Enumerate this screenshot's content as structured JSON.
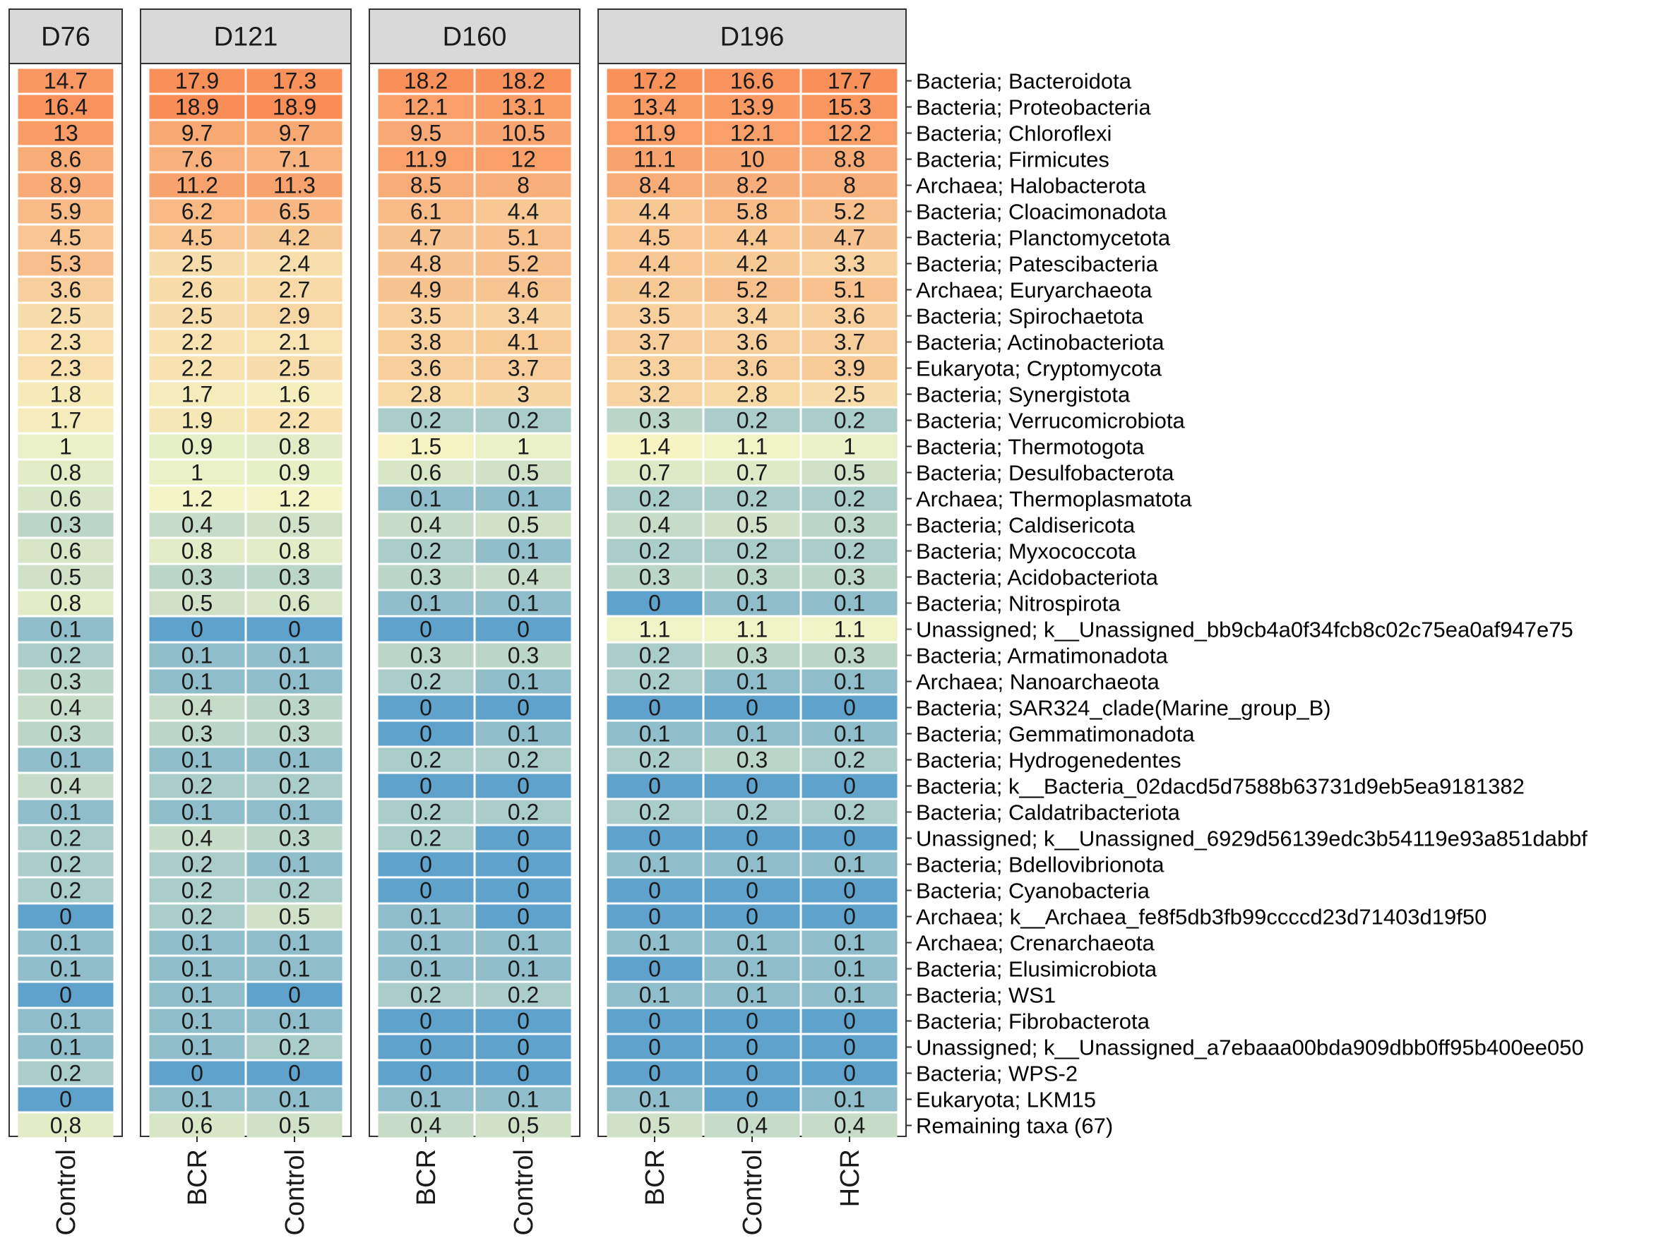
{
  "chart_data": {
    "type": "heatmap",
    "title": "",
    "xlabel": "",
    "ylabel": "",
    "color_scale": {
      "low": "#5fa2cc",
      "mid": "#f6f7c6",
      "high": "#f98d57"
    },
    "rows": [
      "Bacteria; Bacteroidota",
      "Bacteria; Proteobacteria",
      "Bacteria; Chloroflexi",
      "Bacteria; Firmicutes",
      "Archaea; Halobacterota",
      "Bacteria; Cloacimonadota",
      "Bacteria; Planctomycetota",
      "Bacteria; Patescibacteria",
      "Archaea; Euryarchaeota",
      "Bacteria; Spirochaetota",
      "Bacteria; Actinobacteriota",
      "Eukaryota; Cryptomycota",
      "Bacteria; Synergistota",
      "Bacteria; Verrucomicrobiota",
      "Bacteria; Thermotogota",
      "Bacteria; Desulfobacterota",
      "Archaea; Thermoplasmatota",
      "Bacteria; Caldisericota",
      "Bacteria; Myxococcota",
      "Bacteria; Acidobacteriota",
      "Bacteria; Nitrospirota",
      "Unassigned; k__Unassigned_bb9cb4a0f34fcb8c02c75ea0af947e75",
      "Bacteria; Armatimonadota",
      "Archaea; Nanoarchaeota",
      "Bacteria; SAR324_clade(Marine_group_B)",
      "Bacteria; Gemmatimonadota",
      "Bacteria; Hydrogenedentes",
      "Bacteria; k__Bacteria_02dacd5d7588b63731d9eb5ea9181382",
      "Bacteria; Caldatribacteriota",
      "Unassigned; k__Unassigned_6929d56139edc3b54119e93a851dabbf",
      "Bacteria; Bdellovibrionota",
      "Bacteria; Cyanobacteria",
      "Archaea; k__Archaea_fe8f5db3fb99ccccd23d71403d19f50",
      "Archaea; Crenarchaeota",
      "Bacteria; Elusimicrobiota",
      "Bacteria; WS1",
      "Bacteria; Fibrobacterota",
      "Unassigned; k__Unassigned_a7ebaaa00bda909dbb0ff95b400ee050",
      "Bacteria; WPS-2",
      "Eukaryota; LKM15",
      "Remaining taxa (67)"
    ],
    "facets": [
      {
        "name": "D76",
        "columns": [
          {
            "name": "Control",
            "values": [
              14.7,
              16.4,
              13,
              8.6,
              8.9,
              5.9,
              4.5,
              5.3,
              3.6,
              2.5,
              2.3,
              2.3,
              1.8,
              1.7,
              1,
              0.8,
              0.6,
              0.3,
              0.6,
              0.5,
              0.8,
              0.1,
              0.2,
              0.3,
              0.4,
              0.3,
              0.1,
              0.4,
              0.1,
              0.2,
              0.2,
              0.2,
              0,
              0.1,
              0.1,
              0,
              0.1,
              0.1,
              0.2,
              0,
              0.8
            ]
          }
        ]
      },
      {
        "name": "D121",
        "columns": [
          {
            "name": "BCR",
            "values": [
              17.9,
              18.9,
              9.7,
              7.6,
              11.2,
              6.2,
              4.5,
              2.5,
              2.6,
              2.5,
              2.2,
              2.2,
              1.7,
              1.9,
              0.9,
              1,
              1.2,
              0.4,
              0.8,
              0.3,
              0.5,
              0,
              0.1,
              0.1,
              0.4,
              0.3,
              0.1,
              0.2,
              0.1,
              0.4,
              0.2,
              0.2,
              0.2,
              0.1,
              0.1,
              0.1,
              0.1,
              0.1,
              0,
              0.1,
              0.6
            ]
          },
          {
            "name": "Control",
            "values": [
              17.3,
              18.9,
              9.7,
              7.1,
              11.3,
              6.5,
              4.2,
              2.4,
              2.7,
              2.9,
              2.1,
              2.5,
              1.6,
              2.2,
              0.8,
              0.9,
              1.2,
              0.5,
              0.8,
              0.3,
              0.6,
              0,
              0.1,
              0.1,
              0.3,
              0.3,
              0.1,
              0.2,
              0.1,
              0.3,
              0.1,
              0.2,
              0.5,
              0.1,
              0.1,
              0,
              0.1,
              0.2,
              0,
              0.1,
              0.5
            ]
          }
        ]
      },
      {
        "name": "D160",
        "columns": [
          {
            "name": "BCR",
            "values": [
              18.2,
              12.1,
              9.5,
              11.9,
              8.5,
              6.1,
              4.7,
              4.8,
              4.9,
              3.5,
              3.8,
              3.6,
              2.8,
              0.2,
              1.5,
              0.6,
              0.1,
              0.4,
              0.2,
              0.3,
              0.1,
              0,
              0.3,
              0.2,
              0,
              0,
              0.2,
              0,
              0.2,
              0.2,
              0,
              0,
              0.1,
              0.1,
              0.1,
              0.2,
              0,
              0,
              0,
              0.1,
              0.4
            ]
          },
          {
            "name": "Control",
            "values": [
              18.2,
              13.1,
              10.5,
              12,
              8,
              4.4,
              5.1,
              5.2,
              4.6,
              3.4,
              4.1,
              3.7,
              3,
              0.2,
              1,
              0.5,
              0.1,
              0.5,
              0.1,
              0.4,
              0.1,
              0,
              0.3,
              0.1,
              0,
              0.1,
              0.2,
              0,
              0.2,
              0,
              0,
              0,
              0,
              0.1,
              0.1,
              0.2,
              0,
              0,
              0,
              0.1,
              0.5
            ]
          }
        ]
      },
      {
        "name": "D196",
        "columns": [
          {
            "name": "BCR",
            "values": [
              17.2,
              13.4,
              11.9,
              11.1,
              8.4,
              4.4,
              4.5,
              4.4,
              4.2,
              3.5,
              3.7,
              3.3,
              3.2,
              0.3,
              1.4,
              0.7,
              0.2,
              0.4,
              0.2,
              0.3,
              0,
              1.1,
              0.2,
              0.2,
              0,
              0.1,
              0.2,
              0,
              0.2,
              0,
              0.1,
              0,
              0,
              0.1,
              0,
              0.1,
              0,
              0,
              0,
              0.1,
              0.5
            ]
          },
          {
            "name": "Control",
            "values": [
              16.6,
              13.9,
              12.1,
              10,
              8.2,
              5.8,
              4.4,
              4.2,
              5.2,
              3.4,
              3.6,
              3.6,
              2.8,
              0.2,
              1.1,
              0.7,
              0.2,
              0.5,
              0.2,
              0.3,
              0.1,
              1.1,
              0.3,
              0.1,
              0,
              0.1,
              0.3,
              0,
              0.2,
              0,
              0.1,
              0,
              0,
              0.1,
              0.1,
              0.1,
              0,
              0,
              0,
              0,
              0.4
            ]
          },
          {
            "name": "HCR",
            "values": [
              17.7,
              15.3,
              12.2,
              8.8,
              8,
              5.2,
              4.7,
              3.3,
              5.1,
              3.6,
              3.7,
              3.9,
              2.5,
              0.2,
              1,
              0.5,
              0.2,
              0.3,
              0.2,
              0.3,
              0.1,
              1.1,
              0.3,
              0.1,
              0,
              0.1,
              0.2,
              0,
              0.2,
              0,
              0.1,
              0,
              0,
              0.1,
              0.1,
              0.1,
              0,
              0,
              0,
              0.1,
              0.4
            ]
          }
        ]
      }
    ]
  }
}
